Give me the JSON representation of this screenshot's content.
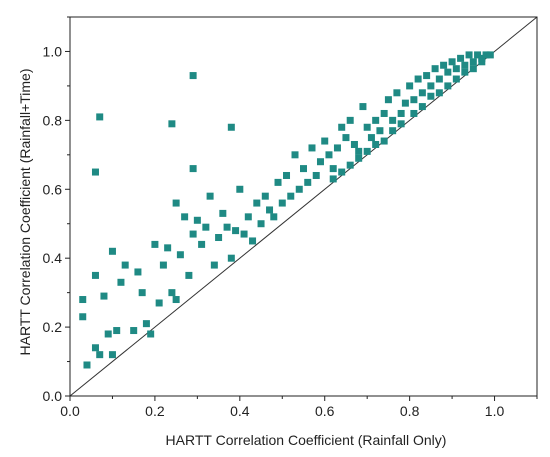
{
  "chart_data": {
    "type": "scatter",
    "xlabel": "HARTT Correlation Coefficient (Rainfall Only)",
    "ylabel": "HARTT Correlation Coefficient (Rainfall+Time)",
    "xlim": [
      0.0,
      1.1
    ],
    "ylim": [
      0.0,
      1.1
    ],
    "x_ticks": [
      "0.0",
      "0.2",
      "0.4",
      "0.6",
      "0.8",
      "1.0"
    ],
    "y_ticks": [
      "0.0",
      "0.2",
      "0.4",
      "0.6",
      "0.8",
      "1.0"
    ],
    "grid": false,
    "reference_line": "y = x",
    "marker": "square",
    "marker_color": "#1f8a84",
    "points": [
      [
        0.07,
        0.81
      ],
      [
        0.29,
        0.93
      ],
      [
        0.24,
        0.79
      ],
      [
        0.38,
        0.78
      ],
      [
        0.29,
        0.66
      ],
      [
        0.06,
        0.65
      ],
      [
        0.03,
        0.28
      ],
      [
        0.03,
        0.23
      ],
      [
        0.04,
        0.09
      ],
      [
        0.06,
        0.14
      ],
      [
        0.07,
        0.12
      ],
      [
        0.06,
        0.35
      ],
      [
        0.08,
        0.29
      ],
      [
        0.09,
        0.18
      ],
      [
        0.1,
        0.12
      ],
      [
        0.11,
        0.19
      ],
      [
        0.1,
        0.42
      ],
      [
        0.12,
        0.33
      ],
      [
        0.13,
        0.38
      ],
      [
        0.15,
        0.19
      ],
      [
        0.16,
        0.36
      ],
      [
        0.17,
        0.3
      ],
      [
        0.18,
        0.21
      ],
      [
        0.19,
        0.18
      ],
      [
        0.2,
        0.44
      ],
      [
        0.21,
        0.27
      ],
      [
        0.22,
        0.38
      ],
      [
        0.23,
        0.43
      ],
      [
        0.24,
        0.3
      ],
      [
        0.25,
        0.28
      ],
      [
        0.25,
        0.56
      ],
      [
        0.26,
        0.41
      ],
      [
        0.27,
        0.52
      ],
      [
        0.28,
        0.35
      ],
      [
        0.29,
        0.47
      ],
      [
        0.3,
        0.51
      ],
      [
        0.31,
        0.44
      ],
      [
        0.32,
        0.49
      ],
      [
        0.33,
        0.58
      ],
      [
        0.34,
        0.38
      ],
      [
        0.35,
        0.46
      ],
      [
        0.36,
        0.53
      ],
      [
        0.37,
        0.49
      ],
      [
        0.38,
        0.4
      ],
      [
        0.39,
        0.48
      ],
      [
        0.4,
        0.6
      ],
      [
        0.41,
        0.47
      ],
      [
        0.42,
        0.52
      ],
      [
        0.43,
        0.45
      ],
      [
        0.44,
        0.56
      ],
      [
        0.45,
        0.5
      ],
      [
        0.46,
        0.58
      ],
      [
        0.47,
        0.54
      ],
      [
        0.48,
        0.52
      ],
      [
        0.49,
        0.62
      ],
      [
        0.5,
        0.56
      ],
      [
        0.51,
        0.64
      ],
      [
        0.52,
        0.58
      ],
      [
        0.53,
        0.7
      ],
      [
        0.54,
        0.6
      ],
      [
        0.55,
        0.66
      ],
      [
        0.56,
        0.62
      ],
      [
        0.57,
        0.72
      ],
      [
        0.58,
        0.64
      ],
      [
        0.59,
        0.68
      ],
      [
        0.6,
        0.74
      ],
      [
        0.61,
        0.7
      ],
      [
        0.62,
        0.66
      ],
      [
        0.63,
        0.72
      ],
      [
        0.64,
        0.78
      ],
      [
        0.65,
        0.75
      ],
      [
        0.66,
        0.8
      ],
      [
        0.67,
        0.73
      ],
      [
        0.68,
        0.71
      ],
      [
        0.69,
        0.84
      ],
      [
        0.7,
        0.78
      ],
      [
        0.71,
        0.75
      ],
      [
        0.72,
        0.8
      ],
      [
        0.73,
        0.77
      ],
      [
        0.74,
        0.82
      ],
      [
        0.75,
        0.86
      ],
      [
        0.76,
        0.8
      ],
      [
        0.77,
        0.88
      ],
      [
        0.78,
        0.82
      ],
      [
        0.79,
        0.85
      ],
      [
        0.8,
        0.9
      ],
      [
        0.81,
        0.86
      ],
      [
        0.82,
        0.92
      ],
      [
        0.83,
        0.88
      ],
      [
        0.84,
        0.93
      ],
      [
        0.85,
        0.9
      ],
      [
        0.86,
        0.95
      ],
      [
        0.87,
        0.92
      ],
      [
        0.88,
        0.96
      ],
      [
        0.89,
        0.94
      ],
      [
        0.9,
        0.97
      ],
      [
        0.91,
        0.95
      ],
      [
        0.92,
        0.98
      ],
      [
        0.93,
        0.96
      ],
      [
        0.94,
        0.99
      ],
      [
        0.95,
        0.97
      ],
      [
        0.96,
        0.99
      ],
      [
        0.97,
        0.98
      ],
      [
        0.98,
        0.99
      ],
      [
        0.99,
        0.99
      ],
      [
        0.74,
        0.74
      ],
      [
        0.76,
        0.77
      ],
      [
        0.78,
        0.79
      ],
      [
        0.81,
        0.82
      ],
      [
        0.83,
        0.84
      ],
      [
        0.85,
        0.87
      ],
      [
        0.87,
        0.88
      ],
      [
        0.89,
        0.9
      ],
      [
        0.91,
        0.92
      ],
      [
        0.93,
        0.94
      ],
      [
        0.95,
        0.95
      ],
      [
        0.97,
        0.97
      ],
      [
        0.62,
        0.63
      ],
      [
        0.64,
        0.65
      ],
      [
        0.66,
        0.67
      ],
      [
        0.68,
        0.69
      ],
      [
        0.7,
        0.71
      ],
      [
        0.72,
        0.73
      ]
    ]
  }
}
